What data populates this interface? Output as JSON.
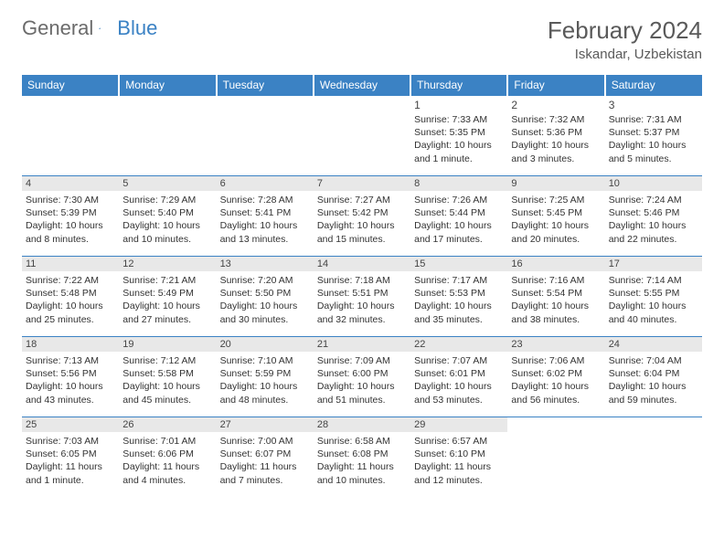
{
  "brand": {
    "general": "General",
    "blue": "Blue"
  },
  "title": {
    "month": "February 2024",
    "location": "Iskandar, Uzbekistan"
  },
  "colors": {
    "header_bg": "#3b82c4",
    "header_text": "#ffffff",
    "rule": "#3b82c4",
    "band": "#e8e8e8"
  },
  "weekdays": [
    "Sunday",
    "Monday",
    "Tuesday",
    "Wednesday",
    "Thursday",
    "Friday",
    "Saturday"
  ],
  "weeks": [
    {
      "banded": false,
      "days": [
        null,
        null,
        null,
        null,
        {
          "n": "1",
          "sunrise": "Sunrise: 7:33 AM",
          "sunset": "Sunset: 5:35 PM",
          "daylight": "Daylight: 10 hours and 1 minute."
        },
        {
          "n": "2",
          "sunrise": "Sunrise: 7:32 AM",
          "sunset": "Sunset: 5:36 PM",
          "daylight": "Daylight: 10 hours and 3 minutes."
        },
        {
          "n": "3",
          "sunrise": "Sunrise: 7:31 AM",
          "sunset": "Sunset: 5:37 PM",
          "daylight": "Daylight: 10 hours and 5 minutes."
        }
      ]
    },
    {
      "banded": true,
      "days": [
        {
          "n": "4",
          "sunrise": "Sunrise: 7:30 AM",
          "sunset": "Sunset: 5:39 PM",
          "daylight": "Daylight: 10 hours and 8 minutes."
        },
        {
          "n": "5",
          "sunrise": "Sunrise: 7:29 AM",
          "sunset": "Sunset: 5:40 PM",
          "daylight": "Daylight: 10 hours and 10 minutes."
        },
        {
          "n": "6",
          "sunrise": "Sunrise: 7:28 AM",
          "sunset": "Sunset: 5:41 PM",
          "daylight": "Daylight: 10 hours and 13 minutes."
        },
        {
          "n": "7",
          "sunrise": "Sunrise: 7:27 AM",
          "sunset": "Sunset: 5:42 PM",
          "daylight": "Daylight: 10 hours and 15 minutes."
        },
        {
          "n": "8",
          "sunrise": "Sunrise: 7:26 AM",
          "sunset": "Sunset: 5:44 PM",
          "daylight": "Daylight: 10 hours and 17 minutes."
        },
        {
          "n": "9",
          "sunrise": "Sunrise: 7:25 AM",
          "sunset": "Sunset: 5:45 PM",
          "daylight": "Daylight: 10 hours and 20 minutes."
        },
        {
          "n": "10",
          "sunrise": "Sunrise: 7:24 AM",
          "sunset": "Sunset: 5:46 PM",
          "daylight": "Daylight: 10 hours and 22 minutes."
        }
      ]
    },
    {
      "banded": true,
      "days": [
        {
          "n": "11",
          "sunrise": "Sunrise: 7:22 AM",
          "sunset": "Sunset: 5:48 PM",
          "daylight": "Daylight: 10 hours and 25 minutes."
        },
        {
          "n": "12",
          "sunrise": "Sunrise: 7:21 AM",
          "sunset": "Sunset: 5:49 PM",
          "daylight": "Daylight: 10 hours and 27 minutes."
        },
        {
          "n": "13",
          "sunrise": "Sunrise: 7:20 AM",
          "sunset": "Sunset: 5:50 PM",
          "daylight": "Daylight: 10 hours and 30 minutes."
        },
        {
          "n": "14",
          "sunrise": "Sunrise: 7:18 AM",
          "sunset": "Sunset: 5:51 PM",
          "daylight": "Daylight: 10 hours and 32 minutes."
        },
        {
          "n": "15",
          "sunrise": "Sunrise: 7:17 AM",
          "sunset": "Sunset: 5:53 PM",
          "daylight": "Daylight: 10 hours and 35 minutes."
        },
        {
          "n": "16",
          "sunrise": "Sunrise: 7:16 AM",
          "sunset": "Sunset: 5:54 PM",
          "daylight": "Daylight: 10 hours and 38 minutes."
        },
        {
          "n": "17",
          "sunrise": "Sunrise: 7:14 AM",
          "sunset": "Sunset: 5:55 PM",
          "daylight": "Daylight: 10 hours and 40 minutes."
        }
      ]
    },
    {
      "banded": true,
      "days": [
        {
          "n": "18",
          "sunrise": "Sunrise: 7:13 AM",
          "sunset": "Sunset: 5:56 PM",
          "daylight": "Daylight: 10 hours and 43 minutes."
        },
        {
          "n": "19",
          "sunrise": "Sunrise: 7:12 AM",
          "sunset": "Sunset: 5:58 PM",
          "daylight": "Daylight: 10 hours and 45 minutes."
        },
        {
          "n": "20",
          "sunrise": "Sunrise: 7:10 AM",
          "sunset": "Sunset: 5:59 PM",
          "daylight": "Daylight: 10 hours and 48 minutes."
        },
        {
          "n": "21",
          "sunrise": "Sunrise: 7:09 AM",
          "sunset": "Sunset: 6:00 PM",
          "daylight": "Daylight: 10 hours and 51 minutes."
        },
        {
          "n": "22",
          "sunrise": "Sunrise: 7:07 AM",
          "sunset": "Sunset: 6:01 PM",
          "daylight": "Daylight: 10 hours and 53 minutes."
        },
        {
          "n": "23",
          "sunrise": "Sunrise: 7:06 AM",
          "sunset": "Sunset: 6:02 PM",
          "daylight": "Daylight: 10 hours and 56 minutes."
        },
        {
          "n": "24",
          "sunrise": "Sunrise: 7:04 AM",
          "sunset": "Sunset: 6:04 PM",
          "daylight": "Daylight: 10 hours and 59 minutes."
        }
      ]
    },
    {
      "banded": true,
      "days": [
        {
          "n": "25",
          "sunrise": "Sunrise: 7:03 AM",
          "sunset": "Sunset: 6:05 PM",
          "daylight": "Daylight: 11 hours and 1 minute."
        },
        {
          "n": "26",
          "sunrise": "Sunrise: 7:01 AM",
          "sunset": "Sunset: 6:06 PM",
          "daylight": "Daylight: 11 hours and 4 minutes."
        },
        {
          "n": "27",
          "sunrise": "Sunrise: 7:00 AM",
          "sunset": "Sunset: 6:07 PM",
          "daylight": "Daylight: 11 hours and 7 minutes."
        },
        {
          "n": "28",
          "sunrise": "Sunrise: 6:58 AM",
          "sunset": "Sunset: 6:08 PM",
          "daylight": "Daylight: 11 hours and 10 minutes."
        },
        {
          "n": "29",
          "sunrise": "Sunrise: 6:57 AM",
          "sunset": "Sunset: 6:10 PM",
          "daylight": "Daylight: 11 hours and 12 minutes."
        },
        null,
        null
      ]
    }
  ]
}
